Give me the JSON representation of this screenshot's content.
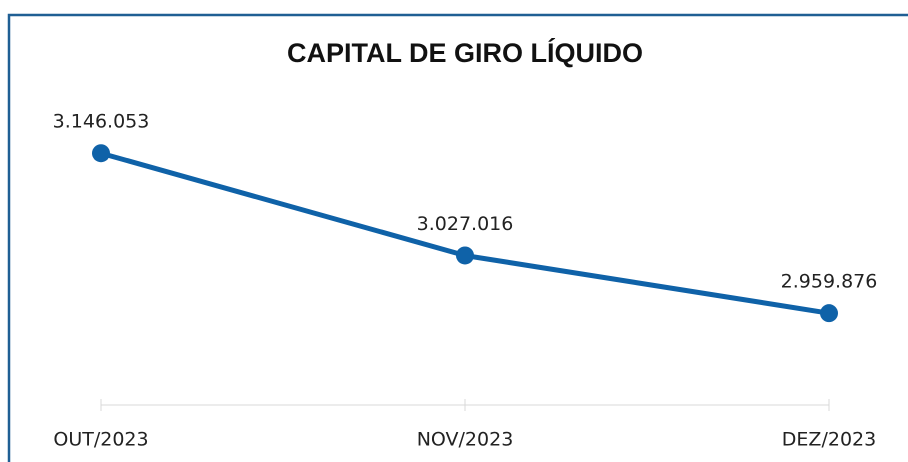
{
  "chart_data": {
    "type": "line",
    "title": "CAPITAL DE GIRO LÍQUIDO",
    "categories": [
      "OUT/2023",
      "NOV/2023",
      "DEZ/2023"
    ],
    "values": [
      3146053,
      3027016,
      2959876
    ],
    "value_labels": [
      "3.146.053",
      "3.027.016",
      "2.959.876"
    ],
    "color": "#0f62a8",
    "ylim": [
      2853000,
      3208000
    ]
  }
}
